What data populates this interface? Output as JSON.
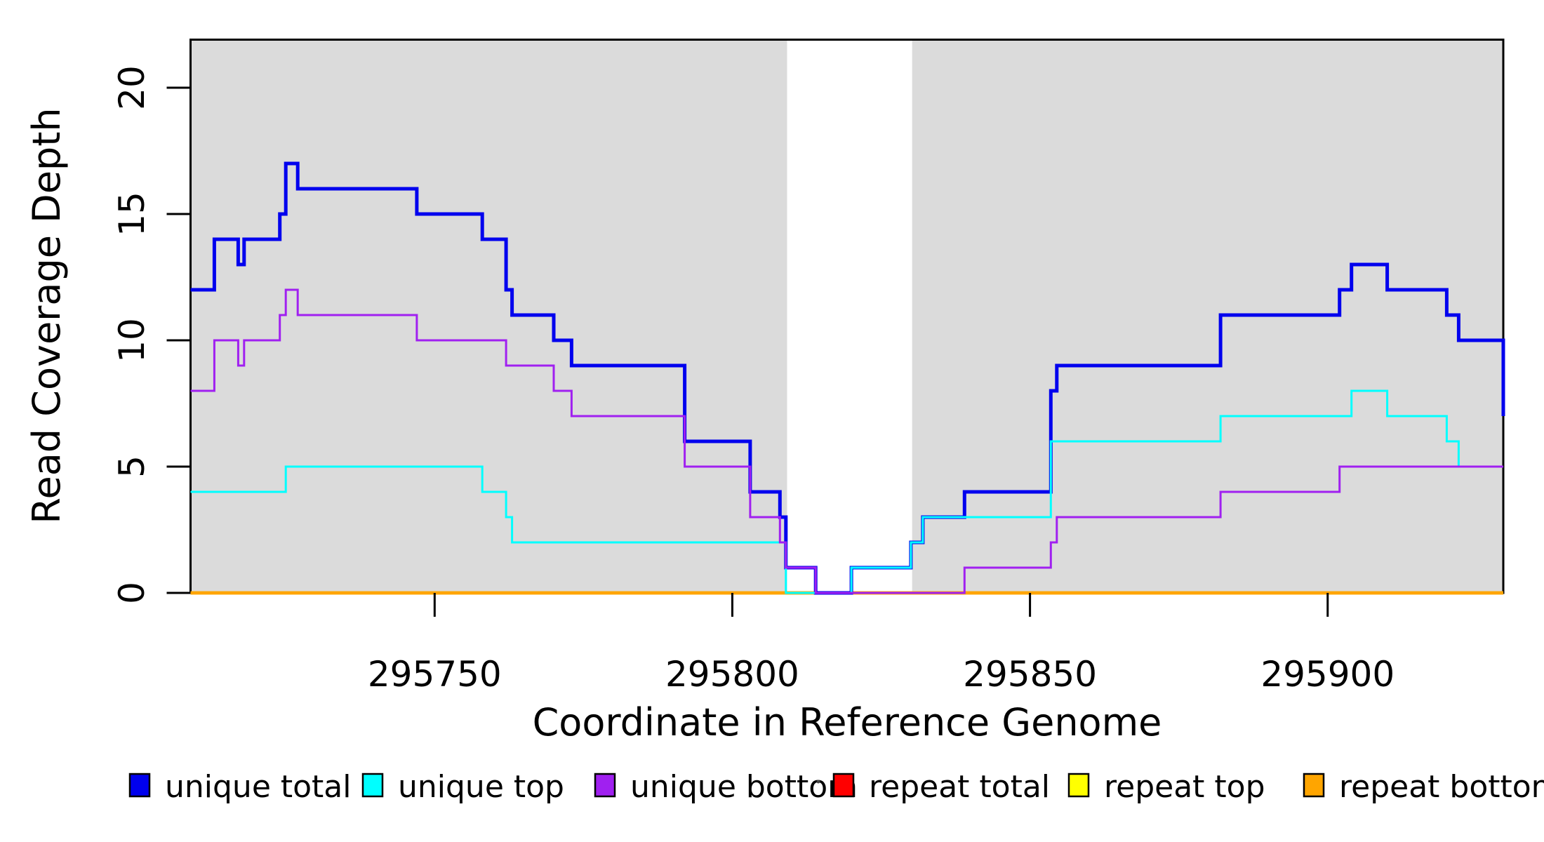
{
  "figure": {
    "background": "#ffffff",
    "plot_background": "#ffffff",
    "shade_color": "#dbdbdb",
    "axis_color": "#000000"
  },
  "chart_data": {
    "type": "line",
    "subtype": "step-coverage",
    "title": "",
    "xlabel": "Coordinate in Reference Genome",
    "ylabel": "Read Coverage Depth",
    "xlim": [
      295709,
      295929.5
    ],
    "ylim": [
      0,
      22
    ],
    "x_ticks": [
      295750,
      295800,
      295850,
      295900
    ],
    "y_ticks": [
      0,
      5,
      10,
      15,
      20
    ],
    "grid": false,
    "legend_position": "bottom",
    "shaded_regions": [
      {
        "name": "shaded-region-left",
        "x0": 295709,
        "x1": 295809.2,
        "color": "#dbdbdb"
      },
      {
        "name": "shaded-region-right",
        "x0": 295830.2,
        "x1": 295929.5,
        "color": "#dbdbdb"
      }
    ],
    "series": [
      {
        "name": "repeat total",
        "color": "#FF0000",
        "width": 4.5,
        "steps": [
          [
            295709,
            0
          ]
        ]
      },
      {
        "name": "repeat top",
        "color": "#FFFF00",
        "width": 4.5,
        "steps": [
          [
            295709,
            0
          ]
        ]
      },
      {
        "name": "repeat bottom",
        "color": "#FFA500",
        "width": 4.5,
        "steps": [
          [
            295709,
            0
          ]
        ]
      },
      {
        "name": "unique total",
        "color": "#0000EE",
        "width": 5,
        "steps": [
          [
            295709,
            12
          ],
          [
            295713,
            14
          ],
          [
            295717,
            13
          ],
          [
            295718,
            14
          ],
          [
            295724,
            15
          ],
          [
            295725,
            17
          ],
          [
            295727,
            16
          ],
          [
            295747,
            15
          ],
          [
            295758,
            14
          ],
          [
            295762,
            12
          ],
          [
            295763,
            11
          ],
          [
            295770,
            10
          ],
          [
            295773,
            9
          ],
          [
            295792,
            6
          ],
          [
            295803,
            4
          ],
          [
            295808,
            3
          ],
          [
            295809,
            1
          ],
          [
            295814,
            0
          ],
          [
            295820,
            1
          ],
          [
            295830,
            2
          ],
          [
            295832,
            3
          ],
          [
            295839,
            4
          ],
          [
            295853.5,
            8
          ],
          [
            295854.5,
            9
          ],
          [
            295882,
            11
          ],
          [
            295902,
            12
          ],
          [
            295904,
            13
          ],
          [
            295910,
            12
          ],
          [
            295920,
            11
          ],
          [
            295922,
            10
          ],
          [
            295929.5,
            7
          ]
        ]
      },
      {
        "name": "unique top",
        "color": "#00FFFF",
        "width": 3,
        "steps": [
          [
            295709,
            4
          ],
          [
            295725,
            5
          ],
          [
            295758,
            4
          ],
          [
            295762,
            3
          ],
          [
            295763,
            2
          ],
          [
            295809,
            0
          ],
          [
            295820,
            1
          ],
          [
            295830,
            2
          ],
          [
            295832,
            3
          ],
          [
            295853.5,
            6
          ],
          [
            295882,
            7
          ],
          [
            295904,
            8
          ],
          [
            295910,
            7
          ],
          [
            295920,
            6
          ],
          [
            295922,
            5
          ]
        ]
      },
      {
        "name": "unique bottom",
        "color": "#A020F0",
        "width": 3,
        "steps": [
          [
            295709,
            8
          ],
          [
            295713,
            10
          ],
          [
            295717,
            9
          ],
          [
            295718,
            10
          ],
          [
            295724,
            11
          ],
          [
            295725,
            12
          ],
          [
            295727,
            11
          ],
          [
            295747,
            10
          ],
          [
            295762,
            9
          ],
          [
            295770,
            8
          ],
          [
            295773,
            7
          ],
          [
            295792,
            5
          ],
          [
            295803,
            3
          ],
          [
            295808,
            2
          ],
          [
            295809,
            1
          ],
          [
            295814,
            0
          ],
          [
            295839,
            1
          ],
          [
            295853.5,
            2
          ],
          [
            295854.5,
            3
          ],
          [
            295882,
            4
          ],
          [
            295902,
            5
          ]
        ]
      }
    ],
    "legend": {
      "items": [
        {
          "label": "unique total",
          "color": "#0000EE"
        },
        {
          "label": "unique top",
          "color": "#00FFFF"
        },
        {
          "label": "unique bottom",
          "color": "#A020F0"
        },
        {
          "label": "repeat total",
          "color": "#FF0000"
        },
        {
          "label": "repeat top",
          "color": "#FFFF00"
        },
        {
          "label": "repeat bottom",
          "color": "#FFA500"
        }
      ]
    }
  }
}
